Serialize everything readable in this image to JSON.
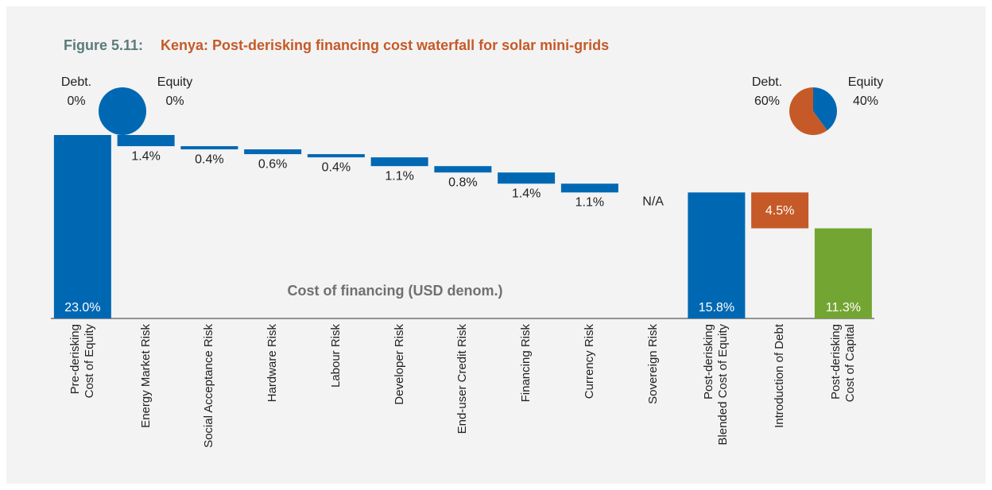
{
  "chart_data": {
    "type": "waterfall",
    "title_prefix": "Figure 5.11:",
    "title": "Kenya: Post-derisking financing cost waterfall for solar mini-grids",
    "annotation": "Cost of financing (USD denom.)",
    "categories": [
      "Pre-derisking\nCost of Equity",
      "Energy  Market Risk",
      "Social Acceptance Risk",
      "Hardware Risk",
      "Labour Risk",
      "Developer Risk",
      "End-user Credit Risk",
      "Financing Risk",
      "Currency Risk",
      "Sovereign Risk",
      "Post-derisking\nBlended Cost of Equity",
      "Introduction of Debt",
      "Post-derisking\nCost of Capital"
    ],
    "kinds": [
      "total",
      "delta",
      "delta",
      "delta",
      "delta",
      "delta",
      "delta",
      "delta",
      "delta",
      "delta",
      "total",
      "delta",
      "total"
    ],
    "values": [
      23.0,
      1.4,
      0.4,
      0.6,
      0.4,
      1.1,
      0.8,
      1.4,
      1.1,
      null,
      15.8,
      4.5,
      11.3
    ],
    "value_labels": [
      "23.0%",
      "1.4%",
      "0.4%",
      "0.6%",
      "0.4%",
      "1.1%",
      "0.8%",
      "1.4%",
      "1.1%",
      "N/A",
      "15.8%",
      "4.5%",
      "11.3%"
    ],
    "colors": [
      "#0068b3",
      "#0068b3",
      "#0068b3",
      "#0068b3",
      "#0068b3",
      "#0068b3",
      "#0068b3",
      "#0068b3",
      "#0068b3",
      "#0068b3",
      "#0068b3",
      "#c55a28",
      "#73a533"
    ],
    "pies": [
      {
        "slices": [
          {
            "name": "Debt.",
            "value": 0,
            "value_label": "0%",
            "color": "#c55a28"
          },
          {
            "name": "Equity",
            "value": 0,
            "value_label": "0%",
            "color": "#0068b3"
          }
        ]
      },
      {
        "slices": [
          {
            "name": "Debt.",
            "value": 60,
            "value_label": "60%",
            "color": "#c55a28"
          },
          {
            "name": "Equity",
            "value": 40,
            "value_label": "40%",
            "color": "#0068b3"
          }
        ]
      }
    ]
  }
}
